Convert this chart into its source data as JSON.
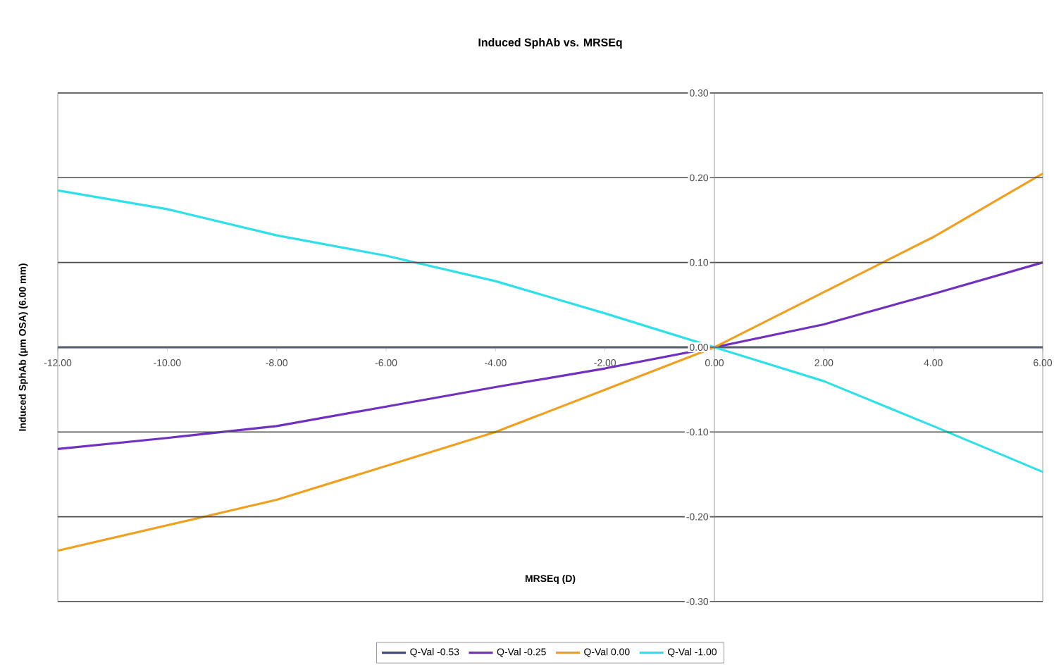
{
  "chart_data": {
    "type": "line",
    "title": "Induced SphAb vs. MRSEq",
    "xlabel": "MRSEq (D)",
    "ylabel": "Induced SphAb (µm OSA) (6.00 mm)",
    "xlim": [
      -12,
      6
    ],
    "ylim": [
      -0.3,
      0.3
    ],
    "xticks": [
      {
        "value": -12,
        "label": "-12.00"
      },
      {
        "value": -10,
        "label": "-10.00"
      },
      {
        "value": -8,
        "label": "-8.00"
      },
      {
        "value": -6,
        "label": "-6.00"
      },
      {
        "value": -4,
        "label": "-4.00"
      },
      {
        "value": -2,
        "label": "-2.00"
      },
      {
        "value": 0,
        "label": "0.00"
      },
      {
        "value": 2,
        "label": "2.00"
      },
      {
        "value": 4,
        "label": "4.00"
      },
      {
        "value": 6,
        "label": "6.00"
      }
    ],
    "yticks": [
      {
        "value": -0.3,
        "label": "-0.30"
      },
      {
        "value": -0.2,
        "label": "-0.20"
      },
      {
        "value": -0.1,
        "label": "-0.10"
      },
      {
        "value": 0,
        "label": "0.00"
      },
      {
        "value": 0.1,
        "label": "0.10"
      },
      {
        "value": 0.2,
        "label": "0.20"
      },
      {
        "value": 0.3,
        "label": "0.30"
      }
    ],
    "grid": "y",
    "legend": "bottom",
    "marker": "none",
    "line_style": "solid",
    "x": [
      -12,
      -10,
      -8,
      -6,
      -4,
      -2,
      0,
      2,
      4,
      6
    ],
    "series": [
      {
        "name": "Q-Val -0.53",
        "color": "#3f4a7a",
        "values": [
          0,
          0,
          0,
          0,
          0,
          0,
          0,
          0,
          0,
          0
        ]
      },
      {
        "name": "Q-Val -0.25",
        "color": "#7030c0",
        "values": [
          -0.12,
          -0.107,
          -0.093,
          -0.07,
          -0.047,
          -0.025,
          0,
          0.027,
          0.063,
          0.1
        ]
      },
      {
        "name": "Q-Val 0.00",
        "color": "#f0a020",
        "values": [
          -0.24,
          -0.21,
          -0.18,
          -0.14,
          -0.1,
          -0.05,
          0,
          0.065,
          0.13,
          0.205
        ]
      },
      {
        "name": "Q-Val -1.00",
        "color": "#30e0e8",
        "values": [
          0.185,
          0.163,
          0.132,
          0.108,
          0.078,
          0.04,
          0,
          -0.04,
          -0.093,
          -0.147
        ]
      }
    ]
  }
}
